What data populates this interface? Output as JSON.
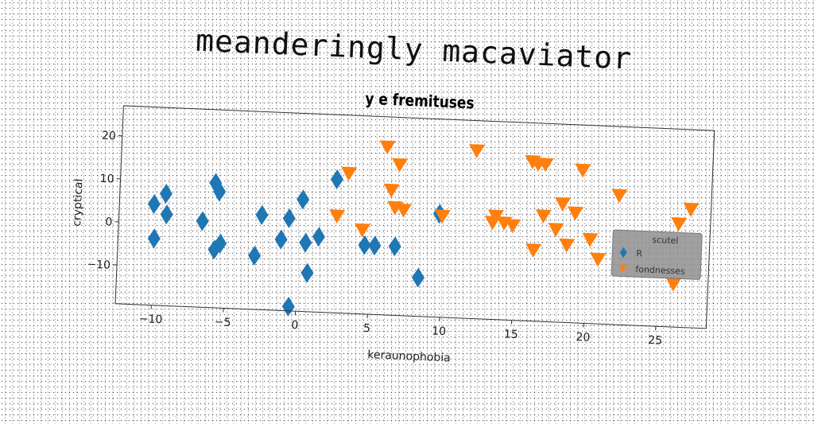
{
  "suptitle": "meanderingly macaviator",
  "chart_data": {
    "type": "scatter",
    "title": "y e fremituses",
    "xlabel": "keraunophobia",
    "ylabel": "cryptical",
    "xlim": [
      -12.5,
      28.5
    ],
    "ylim": [
      -19,
      27
    ],
    "xticks": [
      -10,
      -5,
      0,
      5,
      10,
      15,
      20,
      25
    ],
    "yticks": [
      -10,
      0,
      10,
      20
    ],
    "grid": false,
    "legend": {
      "title": "scutel",
      "placement": "center-right"
    },
    "series": [
      {
        "name": "R",
        "marker": "diamond",
        "color": "#1f77b4",
        "points": [
          [
            -10.1,
            4.5
          ],
          [
            -9.3,
            7.0
          ],
          [
            -9.2,
            2.2
          ],
          [
            -10.0,
            -3.5
          ],
          [
            -6.7,
            1.0
          ],
          [
            -5.9,
            10.0
          ],
          [
            -5.6,
            8.0
          ],
          [
            -5.8,
            -5.5
          ],
          [
            -5.4,
            -4.0
          ],
          [
            -3.0,
            -6.5
          ],
          [
            -2.6,
            3.0
          ],
          [
            -1.2,
            -2.5
          ],
          [
            -0.7,
            2.5
          ],
          [
            0.2,
            7.0
          ],
          [
            0.5,
            -3.0
          ],
          [
            1.4,
            -1.5
          ],
          [
            2.5,
            12.0
          ],
          [
            0.7,
            -10.0
          ],
          [
            -0.5,
            -18.0
          ],
          [
            4.6,
            -3.0
          ],
          [
            5.3,
            -3.0
          ],
          [
            6.7,
            -3.0
          ],
          [
            8.4,
            -10.0
          ],
          [
            9.7,
            5.0
          ]
        ]
      },
      {
        "name": "fondnesses",
        "marker": "triangle-down",
        "color": "#ff7f0e",
        "points": [
          [
            3.3,
            13.5
          ],
          [
            2.6,
            3.5
          ],
          [
            4.4,
            0.5
          ],
          [
            5.9,
            20.0
          ],
          [
            6.3,
            10.0
          ],
          [
            6.8,
            16.0
          ],
          [
            6.6,
            6.0
          ],
          [
            7.2,
            5.5
          ],
          [
            9.9,
            4.5
          ],
          [
            12.1,
            20.0
          ],
          [
            13.4,
            3.5
          ],
          [
            13.6,
            5.0
          ],
          [
            14.2,
            3.5
          ],
          [
            14.8,
            3.0
          ],
          [
            16.0,
            18.0
          ],
          [
            16.4,
            17.5
          ],
          [
            16.9,
            17.5
          ],
          [
            16.3,
            -2.5
          ],
          [
            16.9,
            5.5
          ],
          [
            17.8,
            2.5
          ],
          [
            18.2,
            8.5
          ],
          [
            18.6,
            -1.0
          ],
          [
            19.1,
            6.5
          ],
          [
            19.5,
            16.5
          ],
          [
            20.2,
            0.5
          ],
          [
            20.8,
            -4.0
          ],
          [
            22.1,
            11.0
          ],
          [
            26.3,
            5.0
          ],
          [
            27.1,
            8.5
          ],
          [
            26.1,
            -9.0
          ]
        ]
      }
    ]
  }
}
